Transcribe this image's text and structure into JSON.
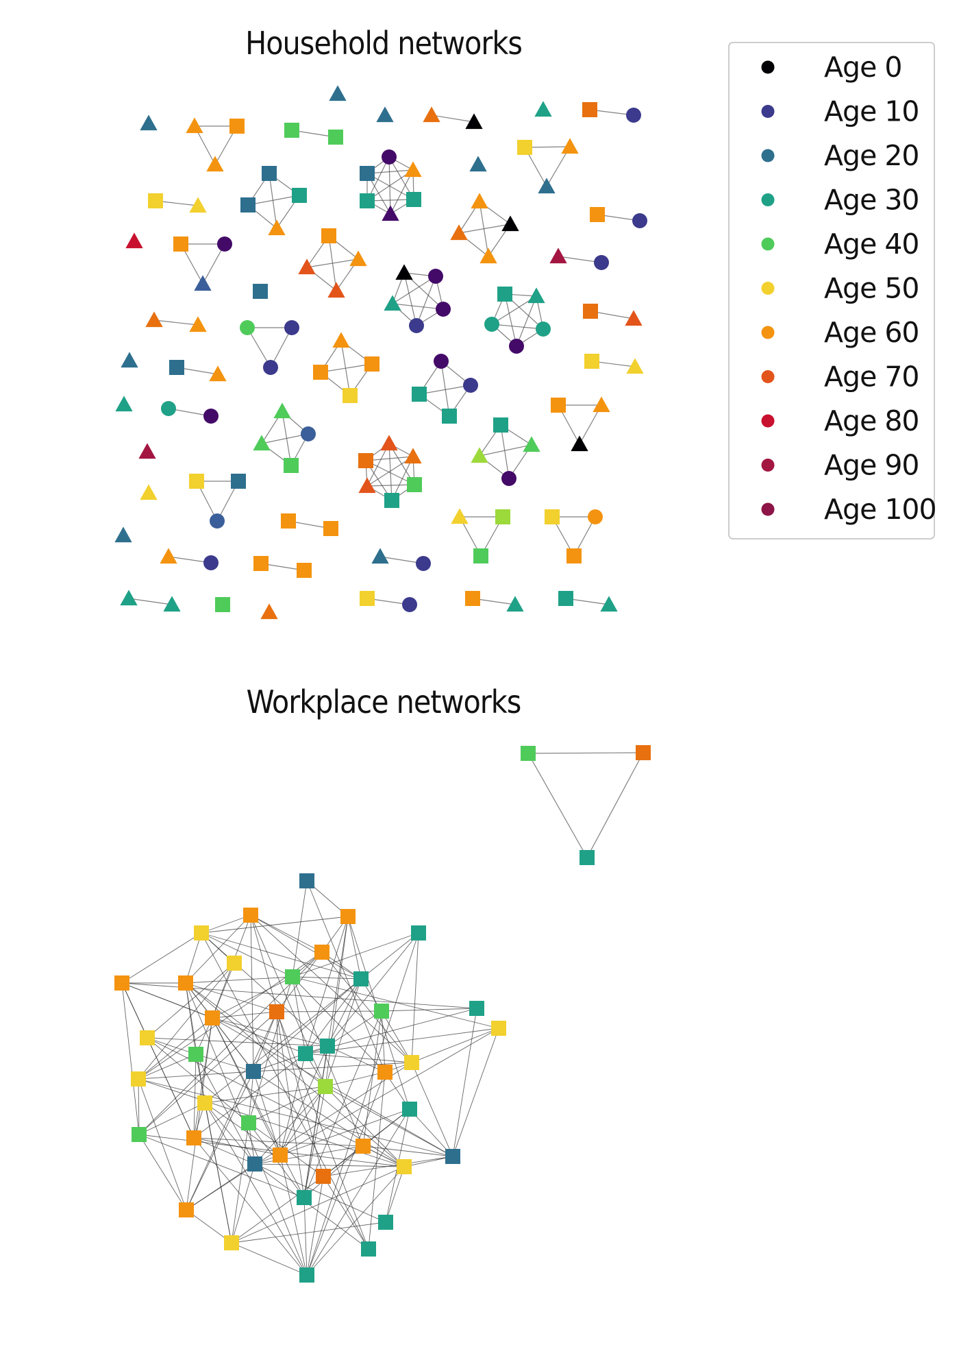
{
  "household_panel": {
    "title": "Household networks"
  },
  "workplace_panel": {
    "title": "Workplace networks"
  },
  "legend": {
    "items": [
      {
        "label": "Age 0",
        "color": "#000004"
      },
      {
        "label": "Age 10",
        "color": "#3b3a8c"
      },
      {
        "label": "Age 20",
        "color": "#2e6f8e"
      },
      {
        "label": "Age 30",
        "color": "#1fa187"
      },
      {
        "label": "Age 40",
        "color": "#4fcb5a"
      },
      {
        "label": "Age 50",
        "color": "#f2d02e"
      },
      {
        "label": "Age 60",
        "color": "#f4930f"
      },
      {
        "label": "Age 70",
        "color": "#e3541b"
      },
      {
        "label": "Age 80",
        "color": "#c8112f"
      },
      {
        "label": "Age 90",
        "color": "#a31642"
      },
      {
        "label": "Age 100",
        "color": "#8c1446"
      }
    ]
  },
  "node_shapes": [
    "circle-icon",
    "square-icon",
    "triangle-icon"
  ]
}
